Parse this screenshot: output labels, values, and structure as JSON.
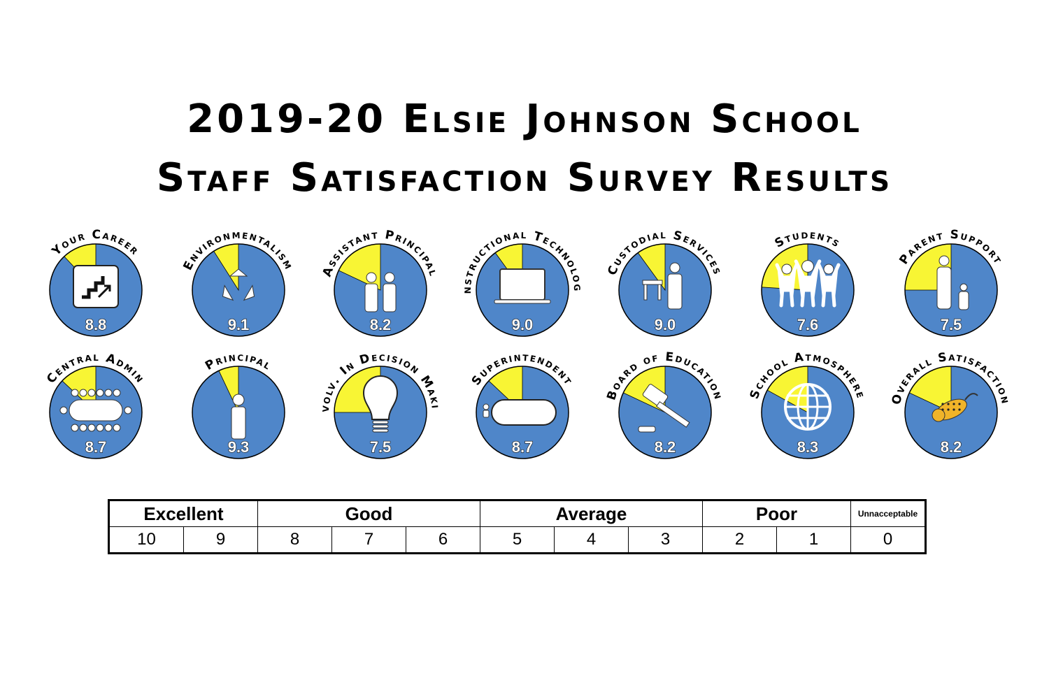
{
  "title": {
    "line1": "2019-20 Elsie Johnson School",
    "line2": "Staff Satisfaction Survey Results"
  },
  "colors": {
    "satisfied": "#4f86c9",
    "remainder": "#f8f534",
    "outline": "#000000"
  },
  "chart_data": {
    "type": "pie",
    "scale_max": 10,
    "items": [
      {
        "label": "Your Career",
        "value": 8.8,
        "value_label": "8.8",
        "icon": "stairs-icon"
      },
      {
        "label": "Environmentalism",
        "value": 9.1,
        "value_label": "9.1",
        "icon": "recycle-icon"
      },
      {
        "label": "Assistant Principal",
        "value": 8.2,
        "value_label": "8.2",
        "icon": "two-people-icon"
      },
      {
        "label": "Instructional Technology",
        "value": 9.0,
        "value_label": "9.0",
        "icon": "laptop-icon"
      },
      {
        "label": "Custodial Services",
        "value": 9.0,
        "value_label": "9.0",
        "icon": "custodian-icon"
      },
      {
        "label": "Students",
        "value": 7.6,
        "value_label": "7.6",
        "icon": "students-icon"
      },
      {
        "label": "Parent Support",
        "value": 7.5,
        "value_label": "7.5",
        "icon": "parent-child-icon"
      },
      {
        "label": "Central Admin",
        "value": 8.7,
        "value_label": "8.7",
        "icon": "conference-table-icon"
      },
      {
        "label": "Principal",
        "value": 9.3,
        "value_label": "9.3",
        "icon": "person-icon"
      },
      {
        "label": "Involv. In Decision Making",
        "value": 7.5,
        "value_label": "7.5",
        "icon": "lightbulb-icon"
      },
      {
        "label": "Superintendent",
        "value": 8.7,
        "value_label": "8.7",
        "icon": "meeting-table-icon"
      },
      {
        "label": "Board of Education",
        "value": 8.2,
        "value_label": "8.2",
        "icon": "gavel-icon"
      },
      {
        "label": "School Atmosphere",
        "value": 8.3,
        "value_label": "8.3",
        "icon": "globe-icon"
      },
      {
        "label": "Overall Satisfaction",
        "value": 8.2,
        "value_label": "8.2",
        "icon": "jaguar-icon"
      }
    ]
  },
  "scale": {
    "categories": [
      {
        "label": "Excellent",
        "span": 2
      },
      {
        "label": "Good",
        "span": 3
      },
      {
        "label": "Average",
        "span": 3
      },
      {
        "label": "Poor",
        "span": 2
      },
      {
        "label": "Unnacceptable",
        "span": 1
      }
    ],
    "values": [
      "10",
      "9",
      "8",
      "7",
      "6",
      "5",
      "4",
      "3",
      "2",
      "1",
      "0"
    ]
  }
}
